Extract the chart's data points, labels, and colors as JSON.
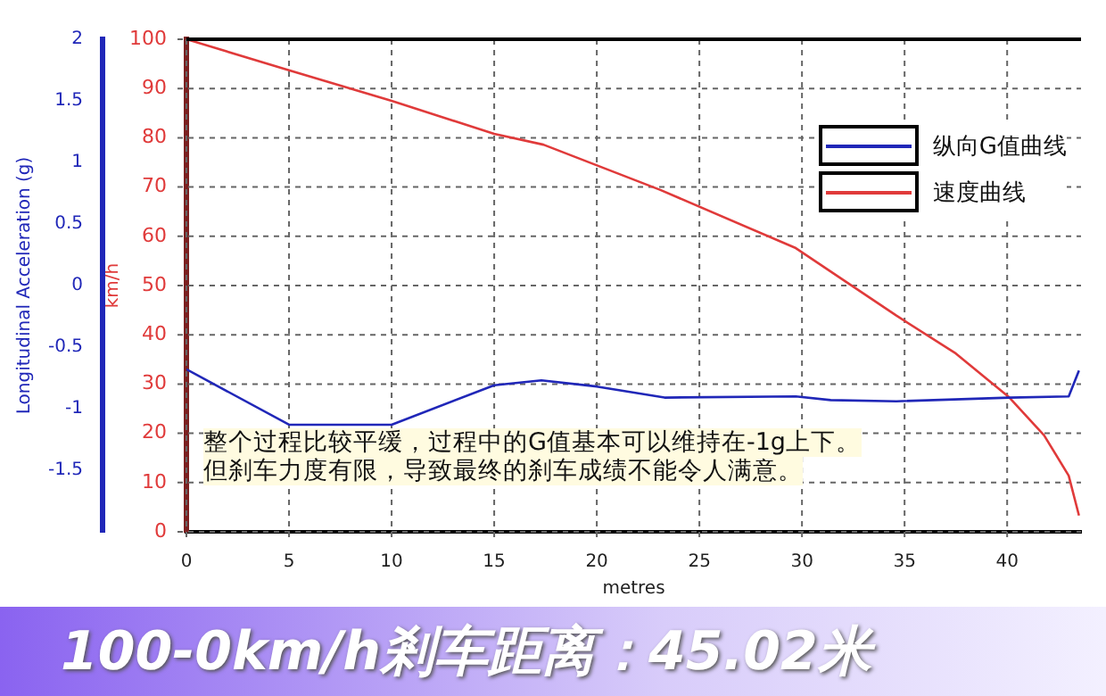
{
  "chart_data": {
    "type": "line",
    "title": "100-0km/h剎车距离：45.02米",
    "xlabel": "metres",
    "ylabel": "Longitudinal Acceleration (g)",
    "y2label": "km/h",
    "xlim": [
      0,
      43.6
    ],
    "xticks": [
      0,
      5,
      10,
      15,
      20,
      25,
      30,
      35,
      40
    ],
    "ylim": [
      -2,
      2
    ],
    "yticks": [
      -1.5,
      -1,
      -0.5,
      0,
      0.5,
      1,
      1.5,
      2
    ],
    "y2lim": [
      0,
      100
    ],
    "y2ticks": [
      0,
      10,
      20,
      30,
      40,
      50,
      60,
      70,
      80,
      90,
      100
    ],
    "grid": true,
    "legend": "top right",
    "line_style": "solid",
    "marker": "none",
    "series": [
      {
        "name": "纵向G值曲线",
        "color": "#2027b8",
        "axis": "y",
        "x": [
          0,
          5,
          10,
          15,
          17.3,
          20,
          23.3,
          29.7,
          31.4,
          34.6,
          40.1,
          43,
          43.5
        ],
        "values": [
          -0.68,
          -1.13,
          -1.13,
          -0.81,
          -0.77,
          -0.82,
          -0.91,
          -0.9,
          -0.93,
          -0.94,
          -0.91,
          -0.9,
          -0.69
        ]
      },
      {
        "name": "速度曲线",
        "color": "#e03a3a",
        "axis": "y2",
        "x": [
          0,
          5,
          10,
          15,
          17.4,
          23.1,
          29.7,
          34.6,
          37.5,
          40.1,
          41.8,
          43,
          43.5
        ],
        "values": [
          100,
          93.7,
          87.5,
          80.8,
          78.6,
          69.4,
          57.6,
          43.9,
          36.2,
          27.3,
          19.6,
          11.4,
          3.3
        ]
      }
    ],
    "annotations": [
      "整个过程比较平缓，过程中的G值基本可以维持在-1g上下。",
      "但刹车力度有限，导致最终的刹车成绩不能令人满意。"
    ]
  }
}
